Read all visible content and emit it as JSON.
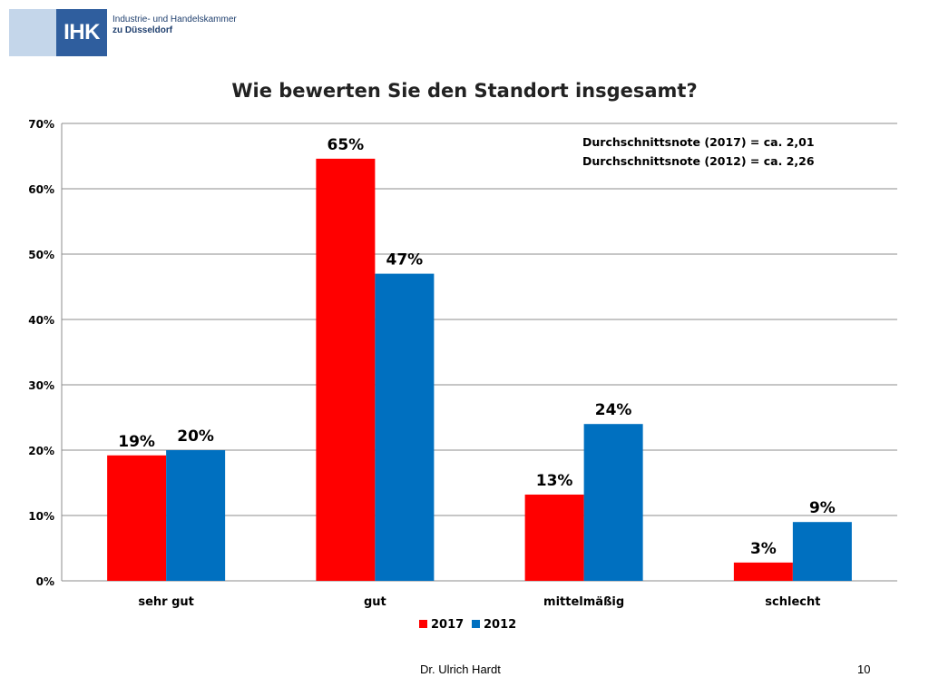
{
  "header": {
    "logo_abbr": "IHK",
    "logo_line1": "Industrie- und Handelskammer",
    "logo_line2": "zu Düsseldorf"
  },
  "chart_data": {
    "type": "bar",
    "title": "Wie bewerten Sie den Standort insgesamt?",
    "categories": [
      "sehr gut",
      "gut",
      "mittelmäßig",
      "schlecht"
    ],
    "series": [
      {
        "name": "2017",
        "color": "#ff0000",
        "values": [
          19,
          65,
          13,
          3
        ],
        "labels": [
          "19%",
          "65%",
          "13%",
          "3%"
        ]
      },
      {
        "name": "2012",
        "color": "#0070c0",
        "values": [
          20,
          47,
          24,
          9
        ],
        "labels": [
          "20%",
          "47%",
          "24%",
          "9%"
        ]
      }
    ],
    "bar_values_exact": {
      "2017": [
        19.2,
        64.6,
        13.2,
        2.8
      ],
      "2012": [
        20.0,
        47.0,
        24.0,
        9.0
      ]
    },
    "ylim": [
      0,
      70
    ],
    "yticks": [
      0,
      10,
      20,
      30,
      40,
      50,
      60,
      70
    ],
    "ytick_labels": [
      "0%",
      "10%",
      "20%",
      "30%",
      "40%",
      "50%",
      "60%",
      "70%"
    ],
    "xlabel": "",
    "ylabel": "",
    "grid": true,
    "legend_position": "bottom",
    "annotations": [
      "Durchschnittsnote (2017) = ca. 2,01",
      "Durchschnittsnote (2012) = ca. 2,26"
    ]
  },
  "footer": {
    "author": "Dr. Ulrich Hardt",
    "page_number": "10"
  }
}
